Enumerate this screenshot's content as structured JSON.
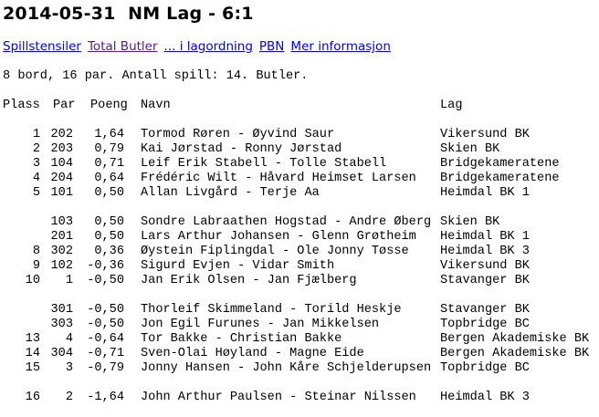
{
  "title": "2014-05-31  NM Lag - 6:1",
  "links": [
    {
      "label": "Spillstensiler",
      "visited": false
    },
    {
      "label": "Total Butler",
      "visited": true
    },
    {
      "label": "... i lagordning",
      "visited": false
    },
    {
      "label": "PBN",
      "visited": false
    },
    {
      "label": "Mer informasjon",
      "visited": false
    }
  ],
  "info": "8 bord, 16 par. Antall spill: 14. Butler.",
  "columns": {
    "plass": "Plass",
    "par": "Par",
    "poeng": "Poeng",
    "navn": "Navn",
    "lag": "Lag"
  },
  "rows": [
    {
      "plass": "1",
      "par": "202",
      "poeng": "1,64",
      "navn": "Tormod Røren - Øyvind Saur",
      "lag": "Vikersund BK"
    },
    {
      "plass": "2",
      "par": "203",
      "poeng": "0,79",
      "navn": "Kai Jørstad - Ronny Jørstad",
      "lag": "Skien BK"
    },
    {
      "plass": "3",
      "par": "104",
      "poeng": "0,71",
      "navn": "Leif Erik Stabell - Tolle Stabell",
      "lag": "Bridgekameratene"
    },
    {
      "plass": "4",
      "par": "204",
      "poeng": "0,64",
      "navn": "Frédéric Wilt - Håvard Heimset Larsen",
      "lag": "Bridgekameratene"
    },
    {
      "plass": "5",
      "par": "101",
      "poeng": "0,50",
      "navn": "Allan Livgård - Terje Aa",
      "lag": "Heimdal BK 1"
    },
    {
      "plass": "",
      "par": "103",
      "poeng": "0,50",
      "navn": "Sondre Labraathen Hogstad - Andre Øberg",
      "lag": "Skien BK"
    },
    {
      "plass": "",
      "par": "201",
      "poeng": "0,50",
      "navn": "Lars Arthur Johansen - Glenn Grøtheim",
      "lag": "Heimdal BK 1"
    },
    {
      "plass": "8",
      "par": "302",
      "poeng": "0,36",
      "navn": "Øystein Fiplingdal - Ole Jonny Tøsse",
      "lag": "Heimdal BK 3"
    },
    {
      "plass": "9",
      "par": "102",
      "poeng": "-0,36",
      "navn": "Sigurd Evjen - Vidar Smith",
      "lag": "Vikersund BK"
    },
    {
      "plass": "10",
      "par": "1",
      "poeng": "-0,50",
      "navn": "Jan Erik Olsen - Jan Fjælberg",
      "lag": "Stavanger BK"
    },
    {
      "plass": "",
      "par": "301",
      "poeng": "-0,50",
      "navn": "Thorleif Skimmeland - Torild Heskje",
      "lag": "Stavanger BK"
    },
    {
      "plass": "",
      "par": "303",
      "poeng": "-0,50",
      "navn": "Jon Egil Furunes - Jan Mikkelsen",
      "lag": "Topbridge BC"
    },
    {
      "plass": "13",
      "par": "4",
      "poeng": "-0,64",
      "navn": "Tor Bakke - Christian Bakke",
      "lag": "Bergen Akademiske BK"
    },
    {
      "plass": "14",
      "par": "304",
      "poeng": "-0,71",
      "navn": "Sven-Olai Høyland - Magne Eide",
      "lag": "Bergen Akademiske BK"
    },
    {
      "plass": "15",
      "par": "3",
      "poeng": "-0,79",
      "navn": "Jonny Hansen - John Kåre Schjelderupsen",
      "lag": "Topbridge BC"
    },
    {
      "plass": "16",
      "par": "2",
      "poeng": "-1,64",
      "navn": "John Arthur Paulsen - Steinar Nilssen",
      "lag": "Heimdal BK 3"
    }
  ]
}
